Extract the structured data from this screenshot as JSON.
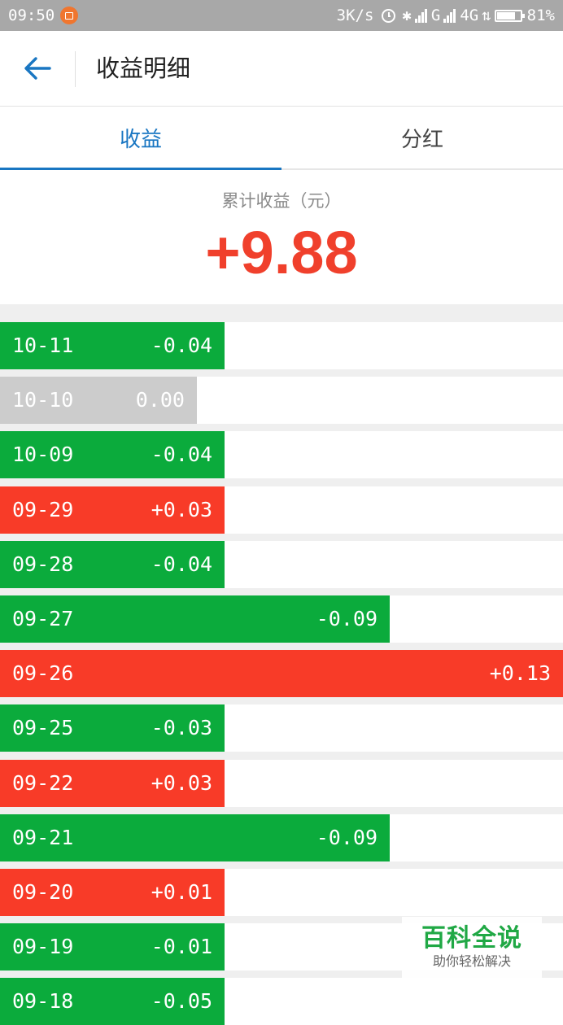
{
  "status_bar": {
    "time": "09:50",
    "net_speed": "3K/s",
    "signal_label_1": "G",
    "signal_label_2": "4G",
    "battery_percent_text": "81%",
    "battery_level": 0.81
  },
  "header": {
    "title": "收益明细",
    "back_icon": "arrow-left-icon"
  },
  "tabs": [
    {
      "label": "收益",
      "active": true
    },
    {
      "label": "分红",
      "active": false
    }
  ],
  "summary": {
    "label": "累计收益（元）",
    "value": "+9.88"
  },
  "colors": {
    "accent": "#1976c2",
    "positive": "#f83b28",
    "negative": "#0bab3c",
    "zero": "#cccccc",
    "total": "#f0402c"
  },
  "records": [
    {
      "date": "10-11",
      "value": "-0.04"
    },
    {
      "date": "10-10",
      "value": "0.00"
    },
    {
      "date": "10-09",
      "value": "-0.04"
    },
    {
      "date": "09-29",
      "value": "+0.03"
    },
    {
      "date": "09-28",
      "value": "-0.04"
    },
    {
      "date": "09-27",
      "value": "-0.09"
    },
    {
      "date": "09-26",
      "value": "+0.13"
    },
    {
      "date": "09-25",
      "value": "-0.03"
    },
    {
      "date": "09-22",
      "value": "+0.03"
    },
    {
      "date": "09-21",
      "value": "-0.09"
    },
    {
      "date": "09-20",
      "value": "+0.01"
    },
    {
      "date": "09-19",
      "value": "-0.01"
    },
    {
      "date": "09-18",
      "value": "-0.05"
    }
  ],
  "watermark": {
    "title": "百科全说",
    "subtitle": "助你轻松解决"
  }
}
